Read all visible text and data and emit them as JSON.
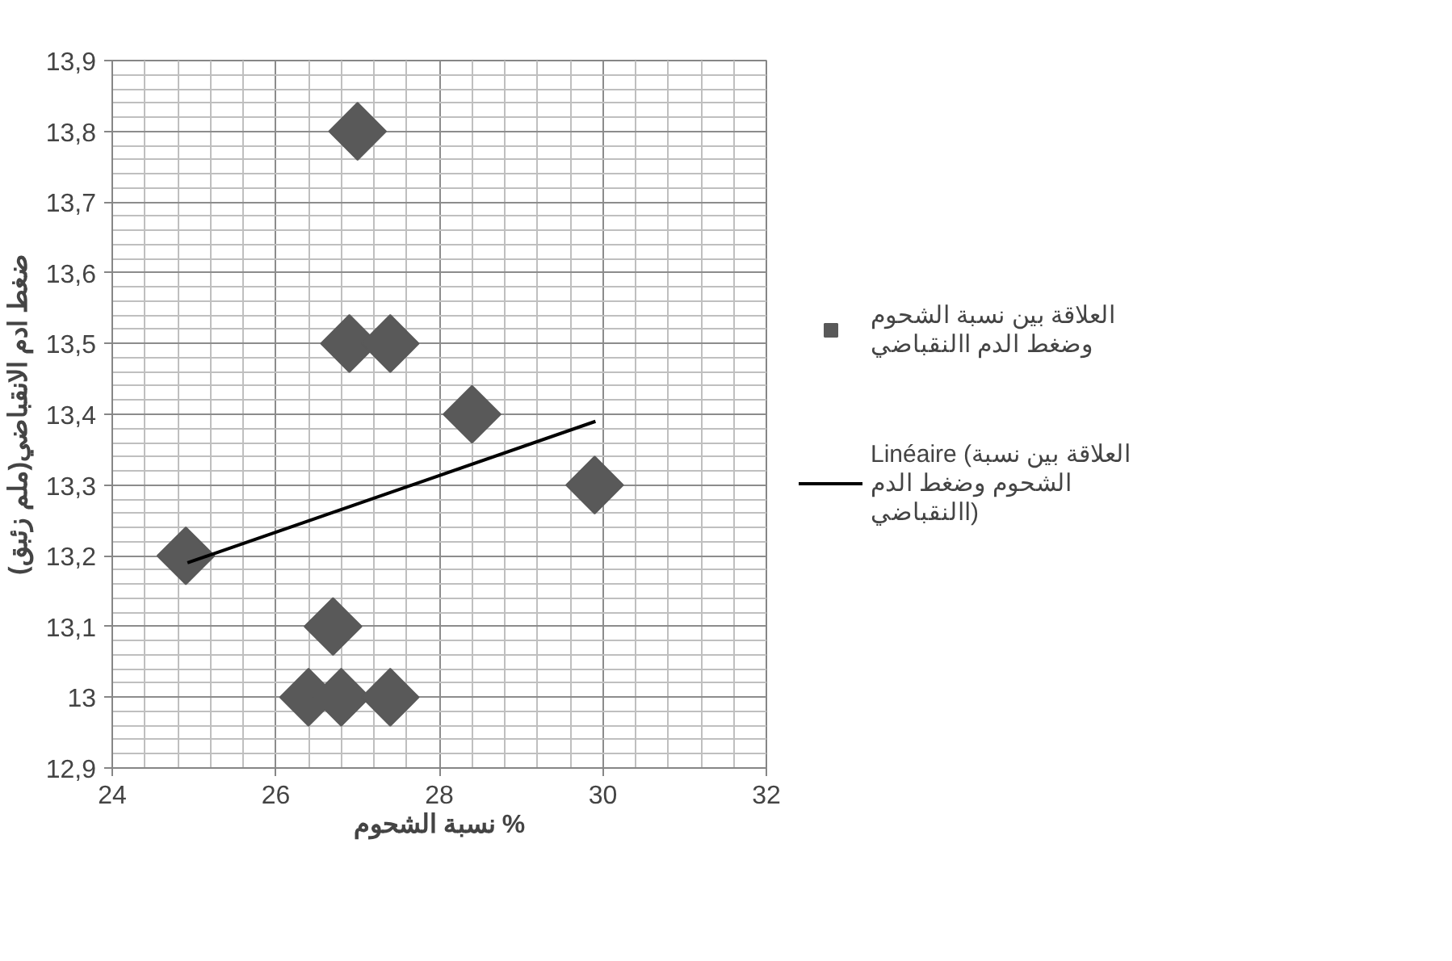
{
  "chart_data": {
    "type": "scatter",
    "xlabel": "نسبة الشحوم %",
    "ylabel": "ضغط ادم الانقباضي(ملم زئبق)",
    "xlim": [
      24,
      32
    ],
    "ylim": [
      12.9,
      13.9
    ],
    "xticks": [
      24,
      26,
      28,
      30,
      32
    ],
    "yticks": [
      {
        "value": 12.9,
        "label": "12,9"
      },
      13,
      {
        "value": 13.1,
        "label": "13,1"
      },
      {
        "value": 13.2,
        "label": "13,2"
      },
      {
        "value": 13.3,
        "label": "13,3"
      },
      {
        "value": 13.4,
        "label": "13,4"
      },
      {
        "value": 13.5,
        "label": "13,5"
      },
      {
        "value": 13.6,
        "label": "13,6"
      },
      {
        "value": 13.7,
        "label": "13,7"
      },
      {
        "value": 13.8,
        "label": "13,8"
      },
      {
        "value": 13.9,
        "label": "13,9"
      }
    ],
    "grid": true,
    "legend": "right",
    "series": [
      {
        "name": "العلاقة بين نسبة الشحوم وضغط الدم االنقباضي",
        "marker": "diamond",
        "color": "#595959",
        "x": [
          24.9,
          27.0,
          26.9,
          27.4,
          28.4,
          29.9,
          26.7,
          26.4,
          26.8,
          27.4
        ],
        "values": [
          13.2,
          13.8,
          13.5,
          13.5,
          13.4,
          13.3,
          13.1,
          13.0,
          13.0,
          13.0
        ]
      },
      {
        "name": "Linéaire (العلاقة بين نسبة الشحوم وضغط الدم االنقباضي)",
        "type": "line",
        "color": "#000000",
        "x": [
          24.92,
          29.91
        ],
        "values": [
          13.19,
          13.39
        ]
      }
    ]
  }
}
